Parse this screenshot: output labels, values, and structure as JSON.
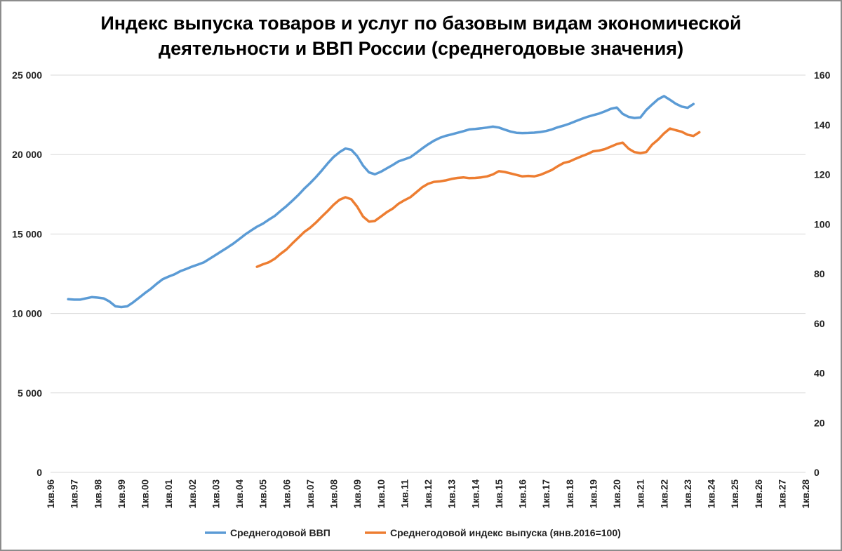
{
  "chart_data": {
    "type": "line",
    "title_lines": [
      "Индекс выпуска товаров и услуг по базовым видам экономической",
      "деятельности и ВВП России (среднегодовые значения)"
    ],
    "x_tick_labels": [
      "1кв.96",
      "1кв.97",
      "1кв.98",
      "1кв.99",
      "1кв.00",
      "1кв.01",
      "1кв.02",
      "1кв.03",
      "1кв.04",
      "1кв.05",
      "1кв.06",
      "1кв.07",
      "1кв.08",
      "1кв.09",
      "1кв.10",
      "1кв.11",
      "1кв.12",
      "1кв.13",
      "1кв.14",
      "1кв.15",
      "1кв.16",
      "1кв.17",
      "1кв.18",
      "1кв.19",
      "1кв.20",
      "1кв.21",
      "1кв.22",
      "1кв.23",
      "1кв.24",
      "1кв.25",
      "1кв.26",
      "1кв.27",
      "1кв.28"
    ],
    "x_range": [
      1996.0,
      2028.0
    ],
    "y_left": {
      "range": [
        0,
        25000
      ],
      "ticks": [
        0,
        5000,
        10000,
        15000,
        20000,
        25000
      ],
      "tick_labels": [
        "0",
        "5 000",
        "10 000",
        "15 000",
        "20 000",
        "25 000"
      ]
    },
    "y_right": {
      "range": [
        0,
        160
      ],
      "ticks": [
        0,
        20,
        40,
        60,
        80,
        100,
        120,
        140,
        160
      ],
      "tick_labels": [
        "0",
        "20",
        "40",
        "60",
        "80",
        "100",
        "120",
        "140",
        "160"
      ]
    },
    "grid": true,
    "legend_position": "bottom",
    "series": [
      {
        "name": "Среднегодовой ВВП",
        "axis": "left",
        "color": "#5b9bd5",
        "points": [
          [
            1996.75,
            10900
          ],
          [
            1997.0,
            10870
          ],
          [
            1997.25,
            10870
          ],
          [
            1997.5,
            10950
          ],
          [
            1997.75,
            11030
          ],
          [
            1998.0,
            11000
          ],
          [
            1998.25,
            10950
          ],
          [
            1998.5,
            10750
          ],
          [
            1998.75,
            10450
          ],
          [
            1999.0,
            10400
          ],
          [
            1999.25,
            10450
          ],
          [
            1999.5,
            10700
          ],
          [
            1999.75,
            10990
          ],
          [
            2000.0,
            11280
          ],
          [
            2000.25,
            11550
          ],
          [
            2000.5,
            11870
          ],
          [
            2000.75,
            12150
          ],
          [
            2001.0,
            12320
          ],
          [
            2001.25,
            12460
          ],
          [
            2001.5,
            12660
          ],
          [
            2001.75,
            12800
          ],
          [
            2002.0,
            12950
          ],
          [
            2002.25,
            13080
          ],
          [
            2002.5,
            13220
          ],
          [
            2002.75,
            13450
          ],
          [
            2003.0,
            13680
          ],
          [
            2003.25,
            13920
          ],
          [
            2003.5,
            14150
          ],
          [
            2003.75,
            14400
          ],
          [
            2004.0,
            14680
          ],
          [
            2004.25,
            14970
          ],
          [
            2004.5,
            15220
          ],
          [
            2004.75,
            15460
          ],
          [
            2005.0,
            15650
          ],
          [
            2005.25,
            15900
          ],
          [
            2005.5,
            16130
          ],
          [
            2005.75,
            16450
          ],
          [
            2006.0,
            16760
          ],
          [
            2006.25,
            17100
          ],
          [
            2006.5,
            17450
          ],
          [
            2006.75,
            17850
          ],
          [
            2007.0,
            18200
          ],
          [
            2007.25,
            18580
          ],
          [
            2007.5,
            19000
          ],
          [
            2007.75,
            19450
          ],
          [
            2008.0,
            19850
          ],
          [
            2008.25,
            20150
          ],
          [
            2008.5,
            20380
          ],
          [
            2008.75,
            20300
          ],
          [
            2009.0,
            19900
          ],
          [
            2009.25,
            19300
          ],
          [
            2009.5,
            18880
          ],
          [
            2009.75,
            18760
          ],
          [
            2010.0,
            18920
          ],
          [
            2010.25,
            19130
          ],
          [
            2010.5,
            19340
          ],
          [
            2010.75,
            19570
          ],
          [
            2011.0,
            19700
          ],
          [
            2011.25,
            19830
          ],
          [
            2011.5,
            20100
          ],
          [
            2011.75,
            20380
          ],
          [
            2012.0,
            20640
          ],
          [
            2012.25,
            20870
          ],
          [
            2012.5,
            21050
          ],
          [
            2012.75,
            21180
          ],
          [
            2013.0,
            21270
          ],
          [
            2013.25,
            21370
          ],
          [
            2013.5,
            21470
          ],
          [
            2013.75,
            21580
          ],
          [
            2014.0,
            21610
          ],
          [
            2014.25,
            21650
          ],
          [
            2014.5,
            21700
          ],
          [
            2014.75,
            21760
          ],
          [
            2015.0,
            21700
          ],
          [
            2015.25,
            21570
          ],
          [
            2015.5,
            21450
          ],
          [
            2015.75,
            21370
          ],
          [
            2016.0,
            21350
          ],
          [
            2016.25,
            21360
          ],
          [
            2016.5,
            21380
          ],
          [
            2016.75,
            21420
          ],
          [
            2017.0,
            21480
          ],
          [
            2017.25,
            21580
          ],
          [
            2017.5,
            21720
          ],
          [
            2017.75,
            21820
          ],
          [
            2018.0,
            21950
          ],
          [
            2018.25,
            22100
          ],
          [
            2018.5,
            22240
          ],
          [
            2018.75,
            22370
          ],
          [
            2019.0,
            22480
          ],
          [
            2019.25,
            22580
          ],
          [
            2019.5,
            22720
          ],
          [
            2019.75,
            22880
          ],
          [
            2020.0,
            22960
          ],
          [
            2020.25,
            22560
          ],
          [
            2020.5,
            22370
          ],
          [
            2020.75,
            22300
          ],
          [
            2021.0,
            22330
          ],
          [
            2021.25,
            22800
          ],
          [
            2021.5,
            23150
          ],
          [
            2021.75,
            23480
          ],
          [
            2022.0,
            23680
          ],
          [
            2022.25,
            23450
          ],
          [
            2022.5,
            23200
          ],
          [
            2022.75,
            23020
          ],
          [
            2023.0,
            22940
          ],
          [
            2023.25,
            23180
          ]
        ]
      },
      {
        "name": "Среднегодовой индекс выпуска (янв.2016=100)",
        "axis": "right",
        "color": "#ed7d31",
        "points": [
          [
            2004.75,
            82.8
          ],
          [
            2005.0,
            83.8
          ],
          [
            2005.25,
            84.6
          ],
          [
            2005.5,
            86.0
          ],
          [
            2005.75,
            88.0
          ],
          [
            2006.0,
            89.8
          ],
          [
            2006.25,
            92.2
          ],
          [
            2006.5,
            94.5
          ],
          [
            2006.75,
            96.8
          ],
          [
            2007.0,
            98.5
          ],
          [
            2007.25,
            100.6
          ],
          [
            2007.5,
            103.0
          ],
          [
            2007.75,
            105.3
          ],
          [
            2008.0,
            107.8
          ],
          [
            2008.25,
            109.8
          ],
          [
            2008.5,
            110.8
          ],
          [
            2008.75,
            110.0
          ],
          [
            2009.0,
            107.0
          ],
          [
            2009.25,
            103.0
          ],
          [
            2009.5,
            101.0
          ],
          [
            2009.75,
            101.3
          ],
          [
            2010.0,
            103.0
          ],
          [
            2010.25,
            104.8
          ],
          [
            2010.5,
            106.2
          ],
          [
            2010.75,
            108.2
          ],
          [
            2011.0,
            109.6
          ],
          [
            2011.25,
            110.8
          ],
          [
            2011.5,
            112.8
          ],
          [
            2011.75,
            114.8
          ],
          [
            2012.0,
            116.2
          ],
          [
            2012.25,
            117.0
          ],
          [
            2012.5,
            117.2
          ],
          [
            2012.75,
            117.6
          ],
          [
            2013.0,
            118.2
          ],
          [
            2013.25,
            118.6
          ],
          [
            2013.5,
            118.8
          ],
          [
            2013.75,
            118.5
          ],
          [
            2014.0,
            118.6
          ],
          [
            2014.25,
            118.8
          ],
          [
            2014.5,
            119.2
          ],
          [
            2014.75,
            120.0
          ],
          [
            2015.0,
            121.3
          ],
          [
            2015.25,
            121.0
          ],
          [
            2015.5,
            120.4
          ],
          [
            2015.75,
            119.8
          ],
          [
            2016.0,
            119.2
          ],
          [
            2016.25,
            119.4
          ],
          [
            2016.5,
            119.2
          ],
          [
            2016.75,
            119.8
          ],
          [
            2017.0,
            120.8
          ],
          [
            2017.25,
            121.8
          ],
          [
            2017.5,
            123.3
          ],
          [
            2017.75,
            124.6
          ],
          [
            2018.0,
            125.2
          ],
          [
            2018.25,
            126.3
          ],
          [
            2018.5,
            127.3
          ],
          [
            2018.75,
            128.2
          ],
          [
            2019.0,
            129.3
          ],
          [
            2019.25,
            129.6
          ],
          [
            2019.5,
            130.2
          ],
          [
            2019.75,
            131.2
          ],
          [
            2020.0,
            132.2
          ],
          [
            2020.25,
            132.8
          ],
          [
            2020.5,
            130.4
          ],
          [
            2020.75,
            129.0
          ],
          [
            2021.0,
            128.6
          ],
          [
            2021.25,
            129.0
          ],
          [
            2021.5,
            132.0
          ],
          [
            2021.75,
            134.0
          ],
          [
            2022.0,
            136.5
          ],
          [
            2022.25,
            138.5
          ],
          [
            2022.5,
            137.8
          ],
          [
            2022.75,
            137.2
          ],
          [
            2023.0,
            136.0
          ],
          [
            2023.25,
            135.5
          ],
          [
            2023.5,
            137.0
          ]
        ]
      }
    ]
  }
}
